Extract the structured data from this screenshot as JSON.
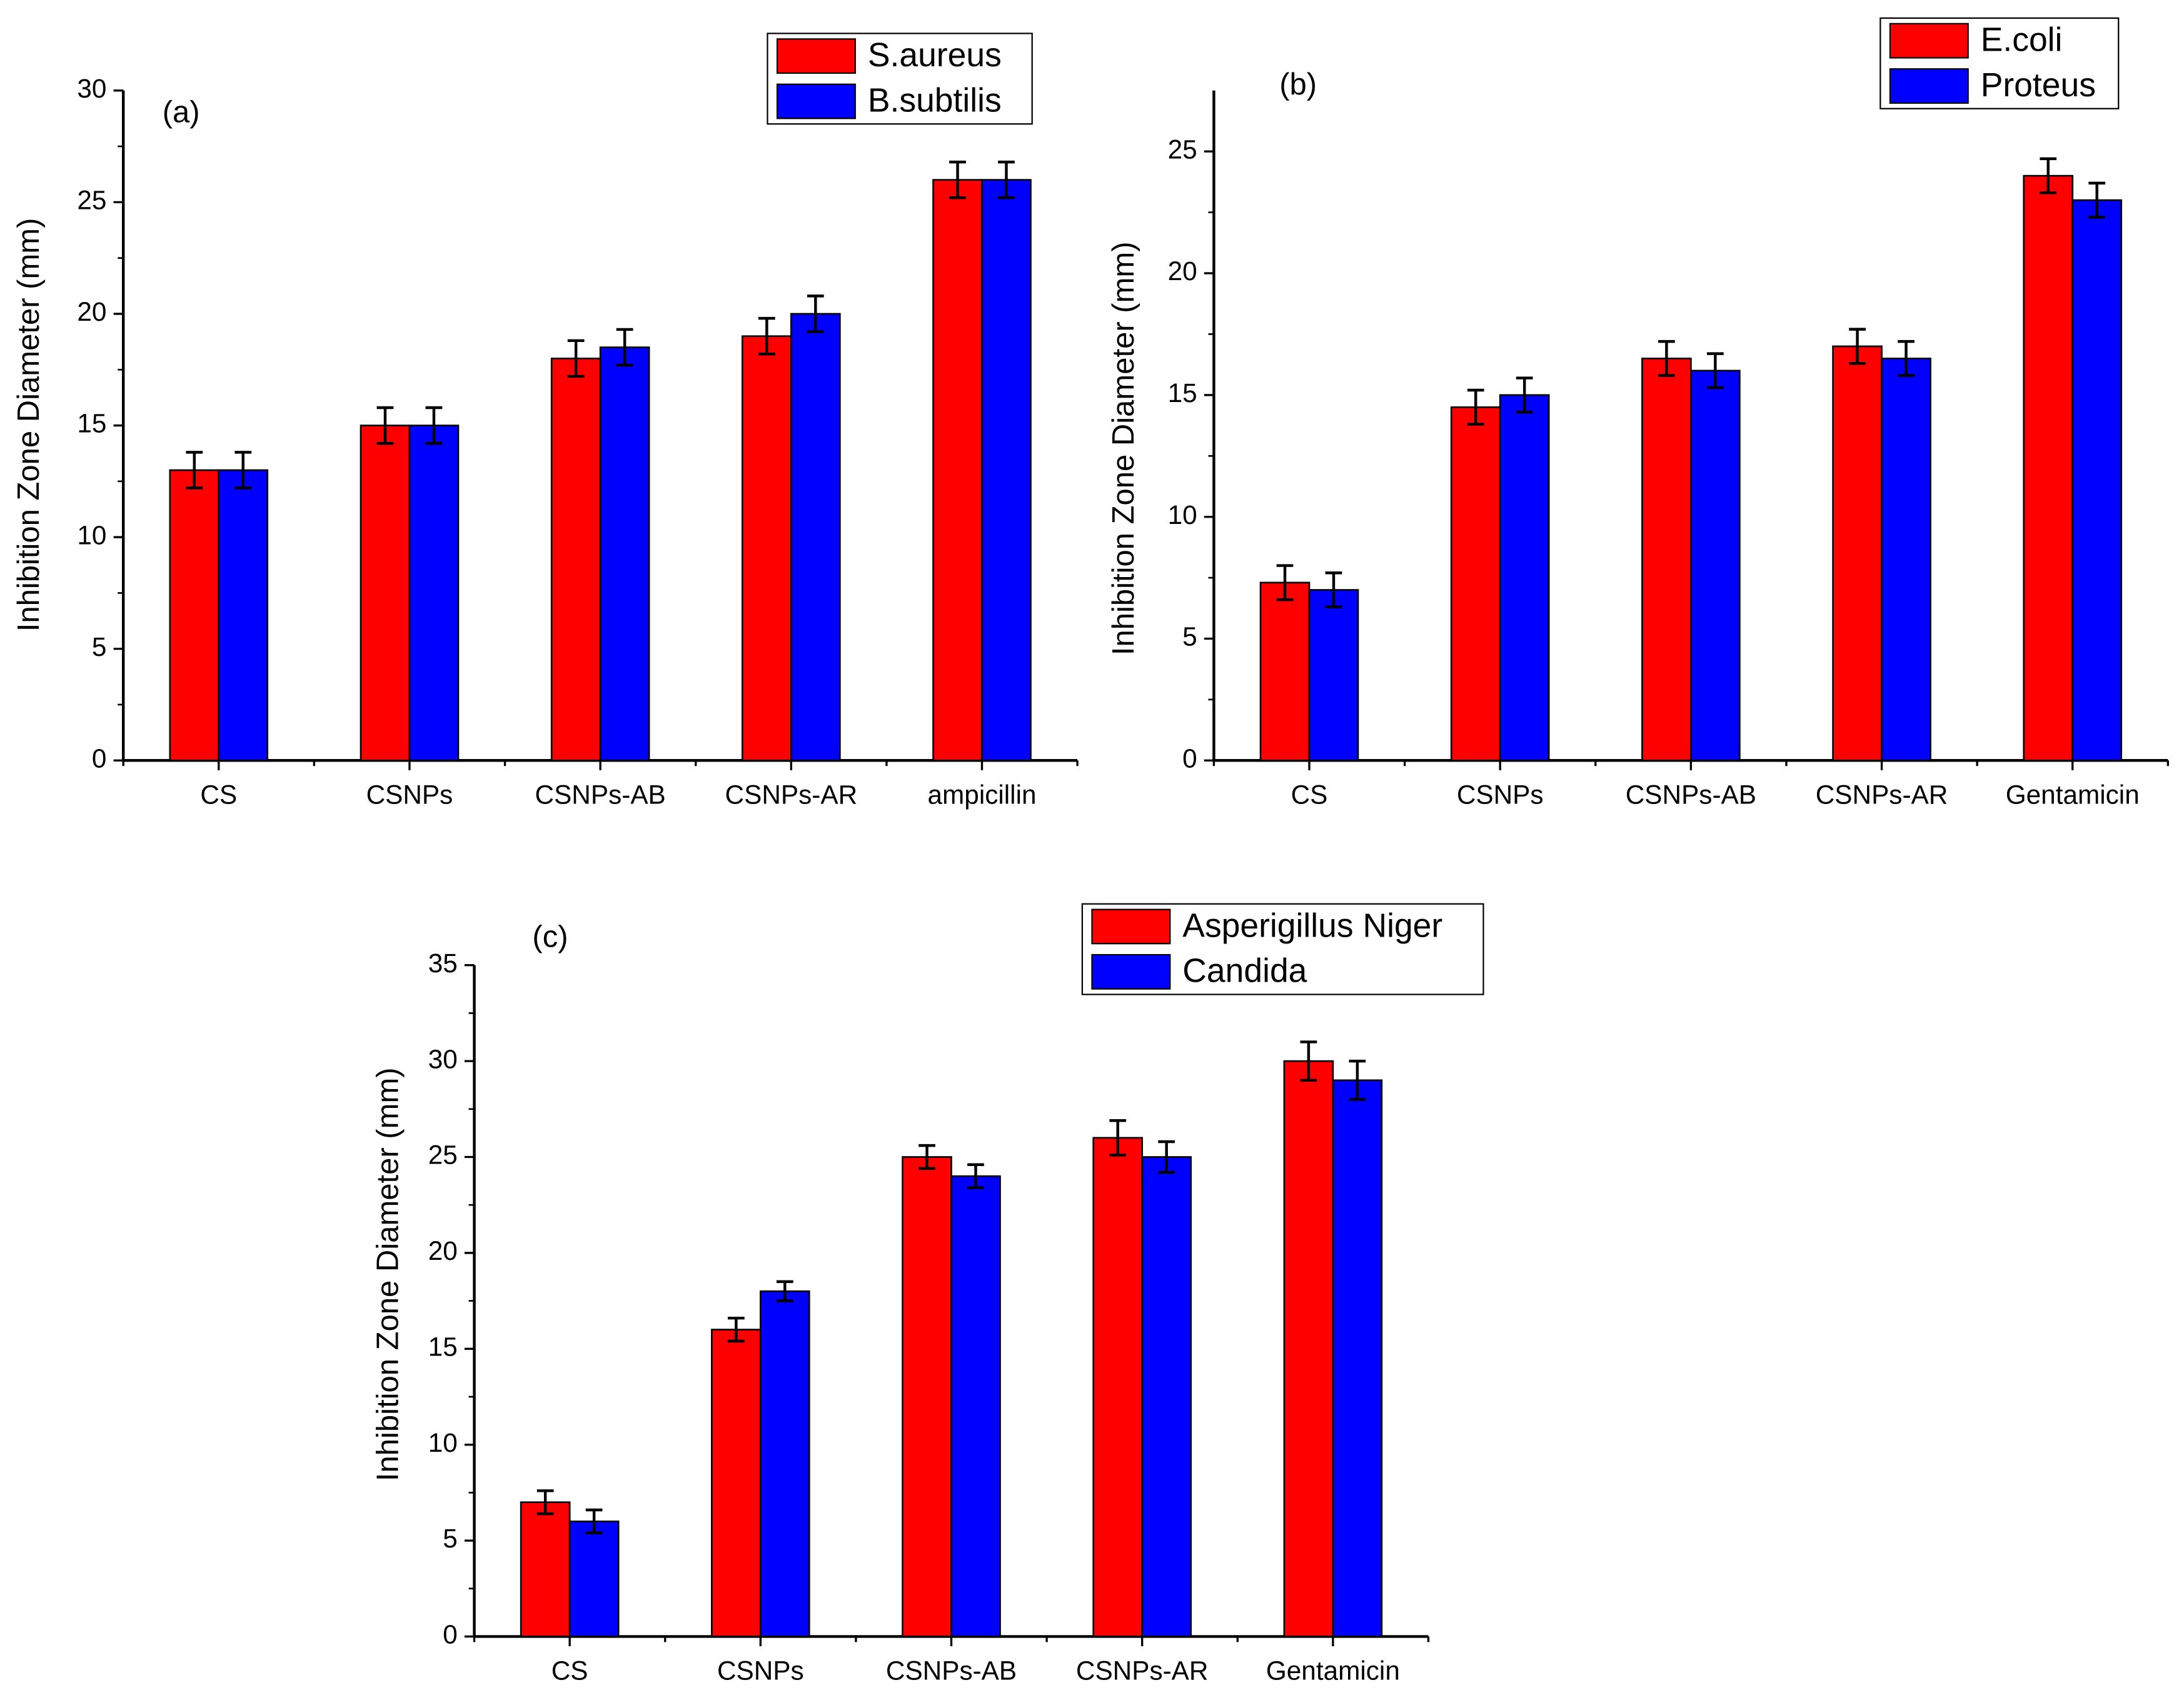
{
  "chart_data": [
    {
      "type": "bar",
      "annotation": "(a)",
      "y_label": "Inhibition Zone Diameter (mm)",
      "categories": [
        "CS",
        "CSNPs",
        "CSNPs-AB",
        "CSNPs-AR",
        "ampicillin"
      ],
      "series": [
        {
          "name": "S.aureus",
          "color": "#ff0000",
          "values": [
            13,
            15,
            18,
            19,
            26
          ],
          "errors": [
            0.8,
            0.8,
            0.8,
            0.8,
            0.8
          ]
        },
        {
          "name": "B.subtilis",
          "color": "#0000ff",
          "values": [
            13,
            15,
            18.5,
            20,
            26
          ],
          "errors": [
            0.8,
            0.8,
            0.8,
            0.8,
            0.8
          ]
        }
      ],
      "ylim": [
        0,
        30
      ],
      "yticks": [
        0,
        5,
        10,
        15,
        20,
        25,
        30
      ]
    },
    {
      "type": "bar",
      "annotation": "(b)",
      "y_label": "Inhibition Zone Diameter (mm)",
      "categories": [
        "CS",
        "CSNPs",
        "CSNPs-AB",
        "CSNPs-AR",
        "Gentamicin"
      ],
      "series": [
        {
          "name": "E.coli",
          "color": "#ff0000",
          "values": [
            7.3,
            14.5,
            16.5,
            17,
            24
          ],
          "errors": [
            0.7,
            0.7,
            0.7,
            0.7,
            0.7
          ]
        },
        {
          "name": "Proteus",
          "color": "#0000ff",
          "values": [
            7,
            15,
            16,
            16.5,
            23
          ],
          "errors": [
            0.7,
            0.7,
            0.7,
            0.7,
            0.7
          ]
        }
      ],
      "ylim": [
        0,
        27.5
      ],
      "yticks": [
        0,
        5,
        10,
        15,
        20,
        25
      ]
    },
    {
      "type": "bar",
      "annotation": "(c)",
      "y_label": "Inhibition Zone Diameter (mm)",
      "categories": [
        "CS",
        "CSNPs",
        "CSNPs-AB",
        "CSNPs-AR",
        "Gentamicin"
      ],
      "series": [
        {
          "name": "Asperigillus Niger",
          "color": "#ff0000",
          "values": [
            7,
            16,
            25,
            26,
            30
          ],
          "errors": [
            0.6,
            0.6,
            0.6,
            0.9,
            1.0
          ]
        },
        {
          "name": "Candida",
          "color": "#0000ff",
          "values": [
            6,
            18,
            24,
            25,
            29
          ],
          "errors": [
            0.6,
            0.5,
            0.6,
            0.8,
            1.0
          ]
        }
      ],
      "ylim": [
        0,
        35
      ],
      "yticks": [
        0,
        5,
        10,
        15,
        20,
        25,
        30,
        35
      ]
    }
  ]
}
